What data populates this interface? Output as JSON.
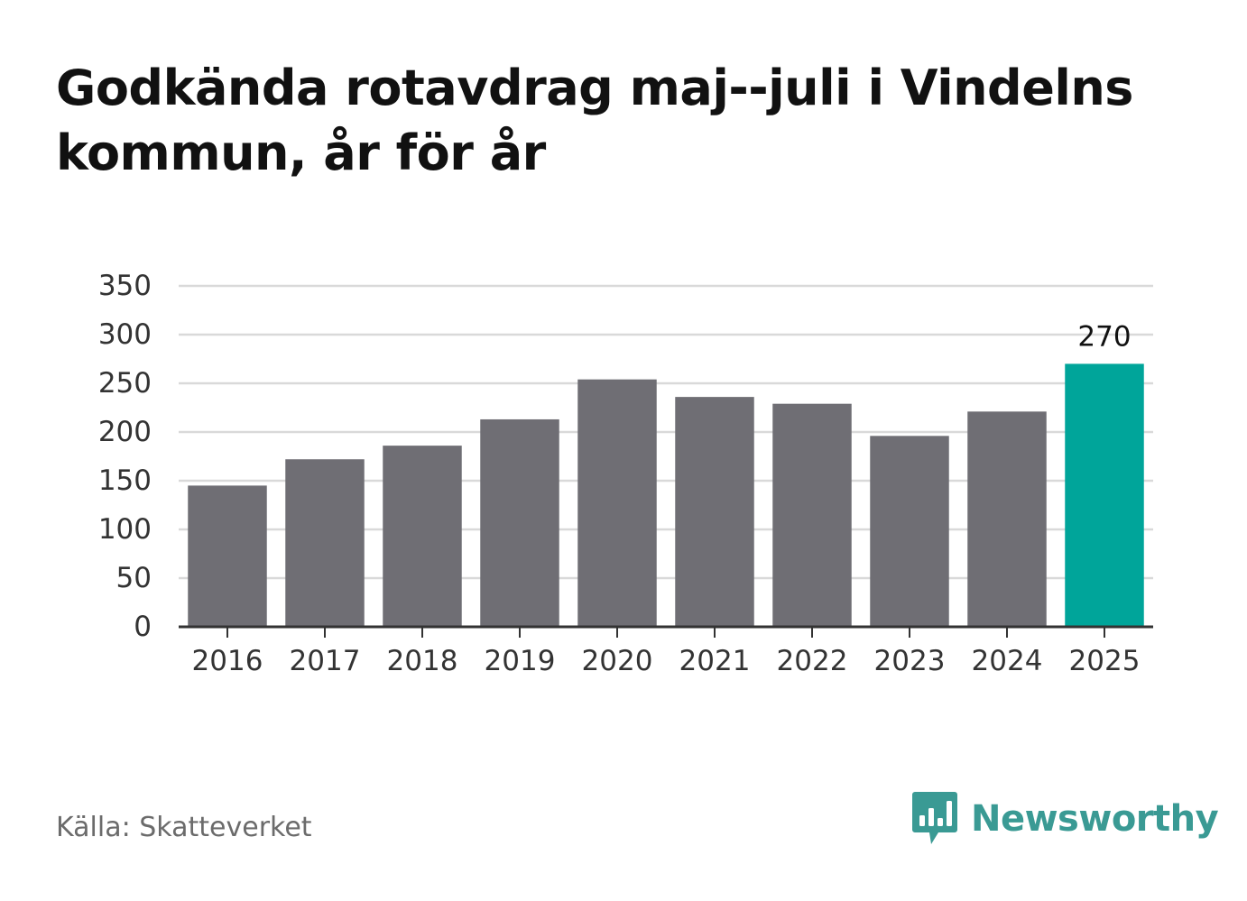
{
  "title": "Godkända rotavdrag maj--juli i Vindelns kommun, år för år",
  "source": "Källa: Skatteverket",
  "brand": {
    "name": "Newsworthy",
    "icon": "newsworthy-logo-icon",
    "color": "#3a9a94"
  },
  "colors": {
    "bar": "#6f6e74",
    "highlight": "#00a59a",
    "grid": "#d9d9d9",
    "axis": "#333333",
    "tick_text": "#333333"
  },
  "chart_data": {
    "type": "bar",
    "categories": [
      "2016",
      "2017",
      "2018",
      "2019",
      "2020",
      "2021",
      "2022",
      "2023",
      "2024",
      "2025"
    ],
    "values": [
      145,
      172,
      186,
      213,
      254,
      236,
      229,
      196,
      221,
      270
    ],
    "highlight_index": 9,
    "data_labels": [
      {
        "index": 9,
        "text": "270"
      }
    ],
    "ylim": [
      0,
      350
    ],
    "yticks": [
      0,
      50,
      100,
      150,
      200,
      250,
      300,
      350
    ],
    "grid": true,
    "legend": "none",
    "xlabel": "",
    "ylabel": ""
  }
}
